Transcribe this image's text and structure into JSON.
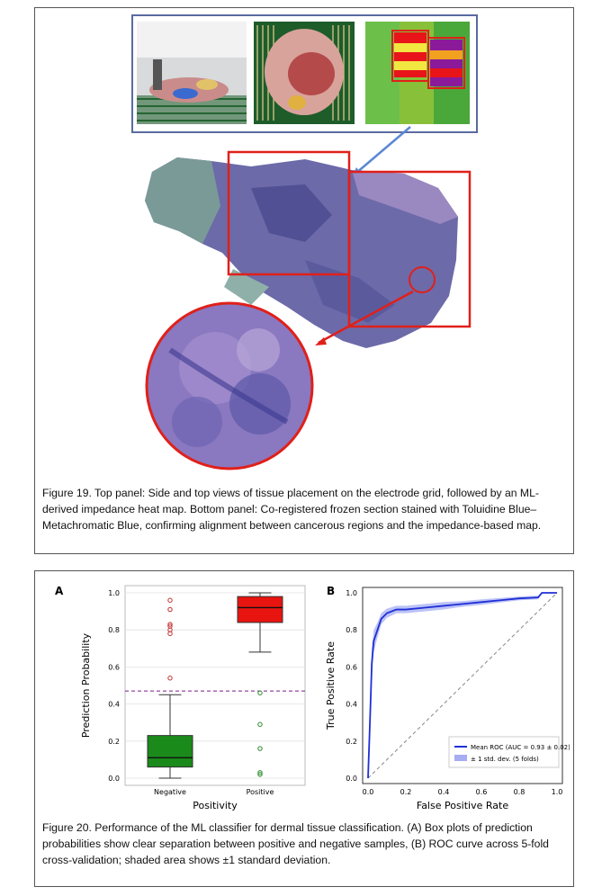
{
  "figure19": {
    "caption_label": "Figure 19.",
    "caption_text": " Top panel: Side and top views of tissue placement on the electrode grid, followed by an ML-derived impedance heat map. Bottom panel: Co-registered frozen section stained with Toluidine Blue–Metachromatic Blue, confirming alignment between cancerous regions and the impedance-based map."
  },
  "figure20": {
    "caption_label": "Figure 20.",
    "caption_text": " Performance of the ML classifier for dermal tissue classification. (A) Box plots of prediction probabilities show clear separation between positive and negative samples, (B) ROC curve across 5-fold cross-validation; shaded area shows ±1 standard deviation."
  },
  "chart_data": [
    {
      "panel_label": "A",
      "type": "box",
      "xlabel": "Positivity",
      "ylabel": "Prediction Probability",
      "categories": [
        "Negative",
        "Positive"
      ],
      "ylim": [
        0,
        1
      ],
      "yticks": [
        "0.0",
        "0.2",
        "0.4",
        "0.6",
        "0.8",
        "1.0"
      ],
      "threshold": 0.47,
      "boxes": [
        {
          "category": "Negative",
          "color": "#1a8a1a",
          "min": 0.0,
          "q1": 0.06,
          "median": 0.11,
          "q3": 0.23,
          "max": 0.45,
          "outliers": [
            0.54,
            0.78,
            0.8,
            0.82,
            0.83,
            0.91,
            0.96
          ]
        },
        {
          "category": "Positive",
          "color": "#e8140f",
          "min": 0.68,
          "q1": 0.84,
          "median": 0.92,
          "q3": 0.98,
          "max": 1.0,
          "outliers": [
            0.46,
            0.29,
            0.16,
            0.03,
            0.02
          ]
        }
      ],
      "grid": true
    },
    {
      "panel_label": "B",
      "type": "line",
      "xlabel": "False Positive Rate",
      "ylabel": "True Positive Rate",
      "xlim": [
        0,
        1
      ],
      "ylim": [
        0,
        1
      ],
      "ticks": [
        "0.0",
        "0.2",
        "0.4",
        "0.6",
        "0.8",
        "1.0"
      ],
      "series": [
        {
          "name": "Mean ROC (AUC = 0.93 ± 0.02)",
          "color": "#1f2fd6",
          "x": [
            0,
            0.01,
            0.02,
            0.03,
            0.05,
            0.07,
            0.1,
            0.15,
            0.2,
            0.3,
            0.4,
            0.5,
            0.6,
            0.7,
            0.8,
            0.9,
            0.92,
            1.0
          ],
          "y": [
            0,
            0.3,
            0.62,
            0.74,
            0.8,
            0.86,
            0.89,
            0.91,
            0.91,
            0.92,
            0.93,
            0.94,
            0.95,
            0.96,
            0.97,
            0.975,
            1.0,
            1.0
          ],
          "std": [
            0,
            0.06,
            0.08,
            0.06,
            0.04,
            0.03,
            0.025,
            0.02,
            0.02,
            0.02,
            0.02,
            0.015,
            0.015,
            0.012,
            0.01,
            0.01,
            0,
            0
          ]
        },
        {
          "name": "± 1 std. dev. (5 folds)",
          "color": "#a6adf2"
        }
      ],
      "chance_line": true,
      "legend_position": "lower-right"
    }
  ]
}
